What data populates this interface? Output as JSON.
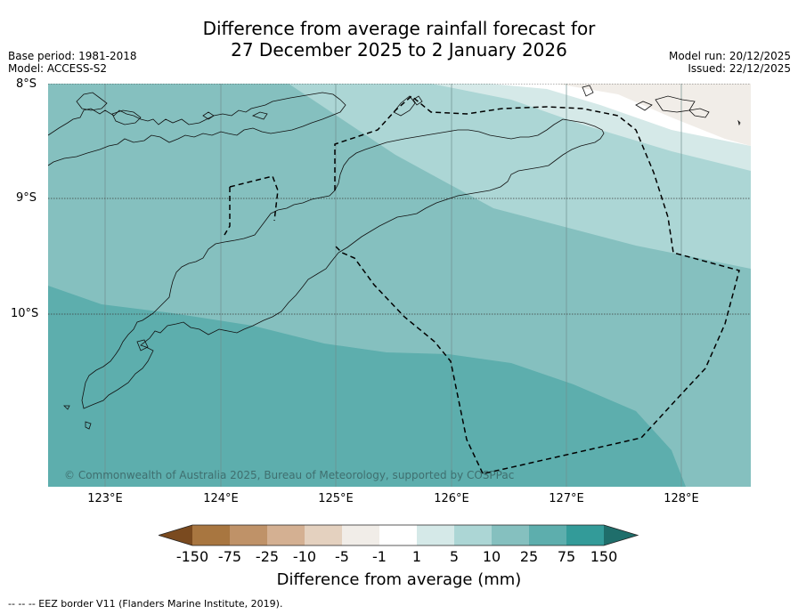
{
  "title_line1": "Difference from average rainfall forecast for",
  "title_line2": "27 December 2025 to 2 January 2026",
  "meta_left": [
    "Base period: 1981-2018",
    "Model: ACCESS-S2"
  ],
  "meta_right": [
    "Model run: 20/12/2025",
    "Issued: 22/12/2025"
  ],
  "lat_labels": [
    "8°S",
    "9°S",
    "10°S"
  ],
  "lon_labels": [
    "123°E",
    "124°E",
    "125°E",
    "126°E",
    "127°E",
    "128°E"
  ],
  "copyright": "© Commonwealth of Australia 2025, Bureau of Meteorology, supported by COSPPac",
  "colorbar": {
    "ticks": [
      "-150",
      "-75",
      "-25",
      "-10",
      "-5",
      "-1",
      "1",
      "5",
      "10",
      "25",
      "75",
      "150"
    ],
    "colors": [
      "#7a4a1f",
      "#a87640",
      "#bf9268",
      "#d4b092",
      "#e4d1bf",
      "#f1ede8",
      "#ffffff",
      "#d5e9e8",
      "#acd6d5",
      "#85c0bf",
      "#5daead",
      "#339b99",
      "#1f6e6b"
    ],
    "title": "Difference from average (mm)"
  },
  "footnote": "--  --  -- EEZ border V11 (Flanders Marine Institute, 2019).",
  "map_colors": {
    "pos_75": "#5daead",
    "pos_25": "#85c0bf",
    "pos_10": "#acd6d5",
    "pos_5": "#d5e9e8",
    "neutral": "#ffffff",
    "neg_5": "#f1ede8"
  }
}
